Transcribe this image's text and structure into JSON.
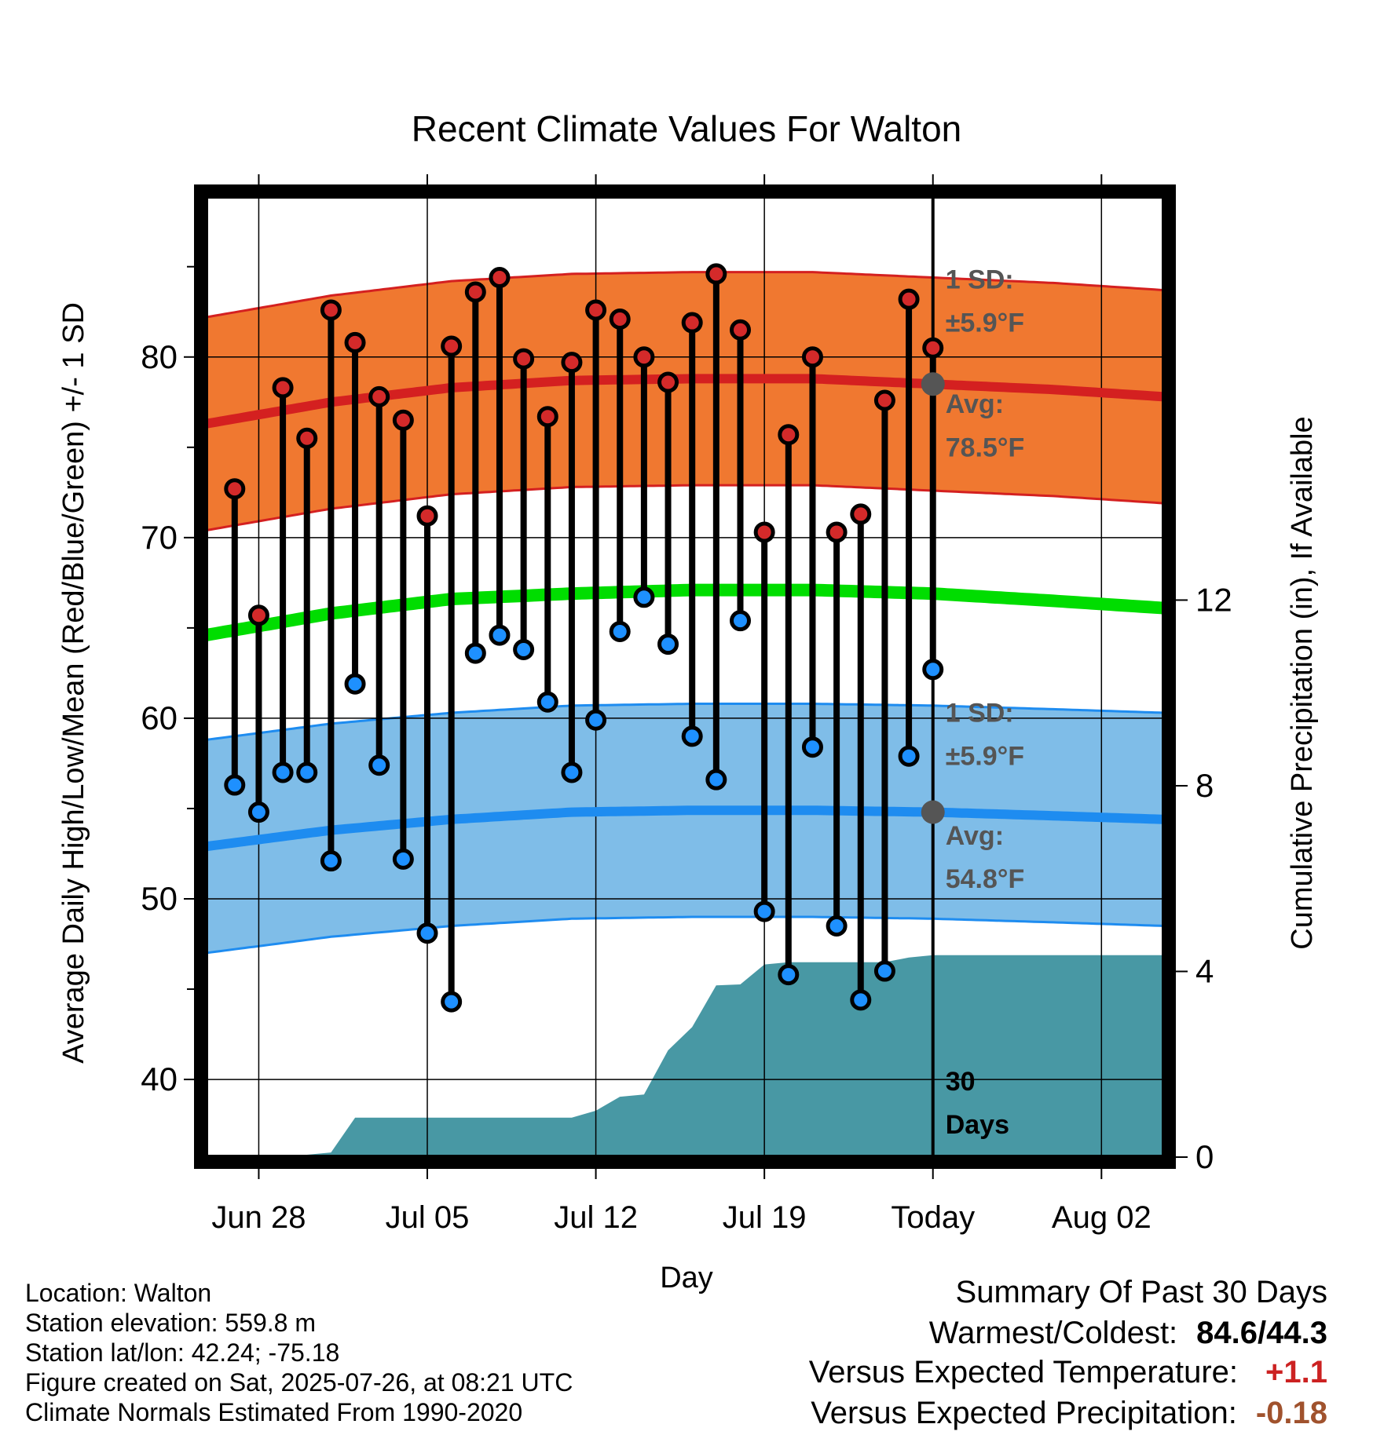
{
  "chart_data": {
    "type": "line",
    "title": "Recent Climate Values For Walton",
    "xlabel": "Day",
    "ylabel": "Average Daily High/Low/Mean (Red/Blue/Green) +/- 1 SD",
    "y2label": "Cumulative Precipitation (in), If Available",
    "x_ticks": [
      "Jun 28",
      "Jul 05",
      "Jul 12",
      "Jul 19",
      "Today",
      "Aug 02"
    ],
    "y_ticks": [
      "40",
      "50",
      "60",
      "70",
      "80"
    ],
    "y2_ticks": [
      "0",
      "4",
      "8",
      "12"
    ],
    "ylim": [
      35.7,
      88.9
    ],
    "y2lim": [
      0,
      20.7
    ],
    "day_range": [
      -30.2,
      9.6
    ],
    "grid": true,
    "days_since_start_of_record": null,
    "normals": {
      "high_avg": [
        [
          -30.2,
          76.3
        ],
        [
          -25,
          77.5
        ],
        [
          -20,
          78.3
        ],
        [
          -15,
          78.7
        ],
        [
          -10,
          78.8
        ],
        [
          -5,
          78.8
        ],
        [
          0,
          78.5
        ],
        [
          5,
          78.2
        ],
        [
          9.6,
          77.8
        ]
      ],
      "low_avg": [
        [
          -30.2,
          52.9
        ],
        [
          -25,
          53.8
        ],
        [
          -20,
          54.4
        ],
        [
          -15,
          54.8
        ],
        [
          -10,
          54.9
        ],
        [
          -5,
          54.9
        ],
        [
          0,
          54.8
        ],
        [
          5,
          54.6
        ],
        [
          9.6,
          54.4
        ]
      ],
      "mean_avg": [
        [
          -30.2,
          64.6
        ],
        [
          -25,
          65.8
        ],
        [
          -20,
          66.6
        ],
        [
          -15,
          66.9
        ],
        [
          -10,
          67.1
        ],
        [
          -5,
          67.1
        ],
        [
          0,
          66.9
        ],
        [
          5,
          66.5
        ],
        [
          9.6,
          66.1
        ]
      ],
      "high_sd": 5.9,
      "low_sd": 5.9
    },
    "today_high_avg": 78.5,
    "today_low_avg": 54.8,
    "daily": [
      {
        "day": -29,
        "high": 72.7,
        "low": 56.3
      },
      {
        "day": -28,
        "high": 65.7,
        "low": 54.8
      },
      {
        "day": -27,
        "high": 78.3,
        "low": 57.0
      },
      {
        "day": -26,
        "high": 75.5,
        "low": 57.0
      },
      {
        "day": -25,
        "high": 82.6,
        "low": 52.1
      },
      {
        "day": -24,
        "high": 80.8,
        "low": 61.9
      },
      {
        "day": -23,
        "high": 77.8,
        "low": 57.4
      },
      {
        "day": -22,
        "high": 76.5,
        "low": 52.2
      },
      {
        "day": -21,
        "high": 71.2,
        "low": 48.1
      },
      {
        "day": -20,
        "high": 80.6,
        "low": 44.3
      },
      {
        "day": -19,
        "high": 83.6,
        "low": 63.6
      },
      {
        "day": -18,
        "high": 84.4,
        "low": 64.6
      },
      {
        "day": -17,
        "high": 79.9,
        "low": 63.8
      },
      {
        "day": -16,
        "high": 76.7,
        "low": 60.9
      },
      {
        "day": -15,
        "high": 79.7,
        "low": 57.0
      },
      {
        "day": -14,
        "high": 82.6,
        "low": 59.9
      },
      {
        "day": -13,
        "high": 82.1,
        "low": 64.8
      },
      {
        "day": -12,
        "high": 80.0,
        "low": 66.7
      },
      {
        "day": -11,
        "high": 78.6,
        "low": 64.1
      },
      {
        "day": -10,
        "high": 81.9,
        "low": 59.0
      },
      {
        "day": -9,
        "high": 84.6,
        "low": 56.6
      },
      {
        "day": -8,
        "high": 81.5,
        "low": 65.4
      },
      {
        "day": -7,
        "high": 70.3,
        "low": 49.3
      },
      {
        "day": -6,
        "high": 75.7,
        "low": 45.8
      },
      {
        "day": -5,
        "high": 80.0,
        "low": 58.4
      },
      {
        "day": -4,
        "high": 70.3,
        "low": 48.5
      },
      {
        "day": -3,
        "high": 71.3,
        "low": 44.4
      },
      {
        "day": -2,
        "high": 77.6,
        "low": 46.0
      },
      {
        "day": -1,
        "high": 83.2,
        "low": 57.9
      },
      {
        "day": 0,
        "high": 80.5,
        "low": 62.7
      }
    ],
    "cumulative_precip": [
      [
        -30.2,
        0.0
      ],
      [
        -29,
        0.0
      ],
      [
        -28,
        0.05
      ],
      [
        -26,
        0.05
      ],
      [
        -25,
        0.1
      ],
      [
        -24,
        0.85
      ],
      [
        -15,
        0.85
      ],
      [
        -14,
        1.0
      ],
      [
        -13,
        1.3
      ],
      [
        -12,
        1.35
      ],
      [
        -11,
        2.3
      ],
      [
        -10,
        2.8
      ],
      [
        -9,
        3.7
      ],
      [
        -8,
        3.72
      ],
      [
        -7,
        4.15
      ],
      [
        -6,
        4.2
      ],
      [
        -2,
        4.2
      ],
      [
        -1,
        4.3
      ],
      [
        0,
        4.35
      ],
      [
        9.6,
        4.35
      ]
    ],
    "annotations": {
      "high_sd_label": "1 SD:",
      "high_sd_value": "±5.9°F",
      "high_avg_label": "Avg:",
      "high_avg_value": "78.5°F",
      "low_sd_label": "1 SD:",
      "low_sd_value": "±5.9°F",
      "low_avg_label": "Avg:",
      "low_avg_value": "54.8°F",
      "window_line1": "30",
      "window_line2": "Days"
    },
    "colors": {
      "high_band": "#f07830",
      "high_line": "#d42020",
      "high_edge": "#d42020",
      "low_band": "#7fbde8",
      "low_line": "#1e8cf0",
      "low_edge": "#1e8cf0",
      "mean_line": "#00dd00",
      "precip": "#4898a4",
      "high_dot": "#d42a2a",
      "low_dot": "#1e90ff",
      "annotation_text": "#555555",
      "today_marker": "#555555"
    }
  },
  "station_info": [
    "Location: Walton",
    "Station elevation: 559.8 m",
    "Station lat/lon: 42.24; -75.18",
    "Figure created on Sat, 2025-07-26, at 08:21 UTC",
    "Climate Normals Estimated From 1990-2020"
  ],
  "summary": {
    "title": "Summary Of Past 30 Days",
    "warmest_coldest_label": "Warmest/Coldest:",
    "warmest_coldest_value": "84.6/44.3",
    "temp_label": "Versus Expected Temperature:",
    "temp_value": "+1.1",
    "temp_color": "#cc2222",
    "precip_label": "Versus Expected Precipitation:",
    "precip_value": "-0.18",
    "precip_color": "#a0522d"
  }
}
